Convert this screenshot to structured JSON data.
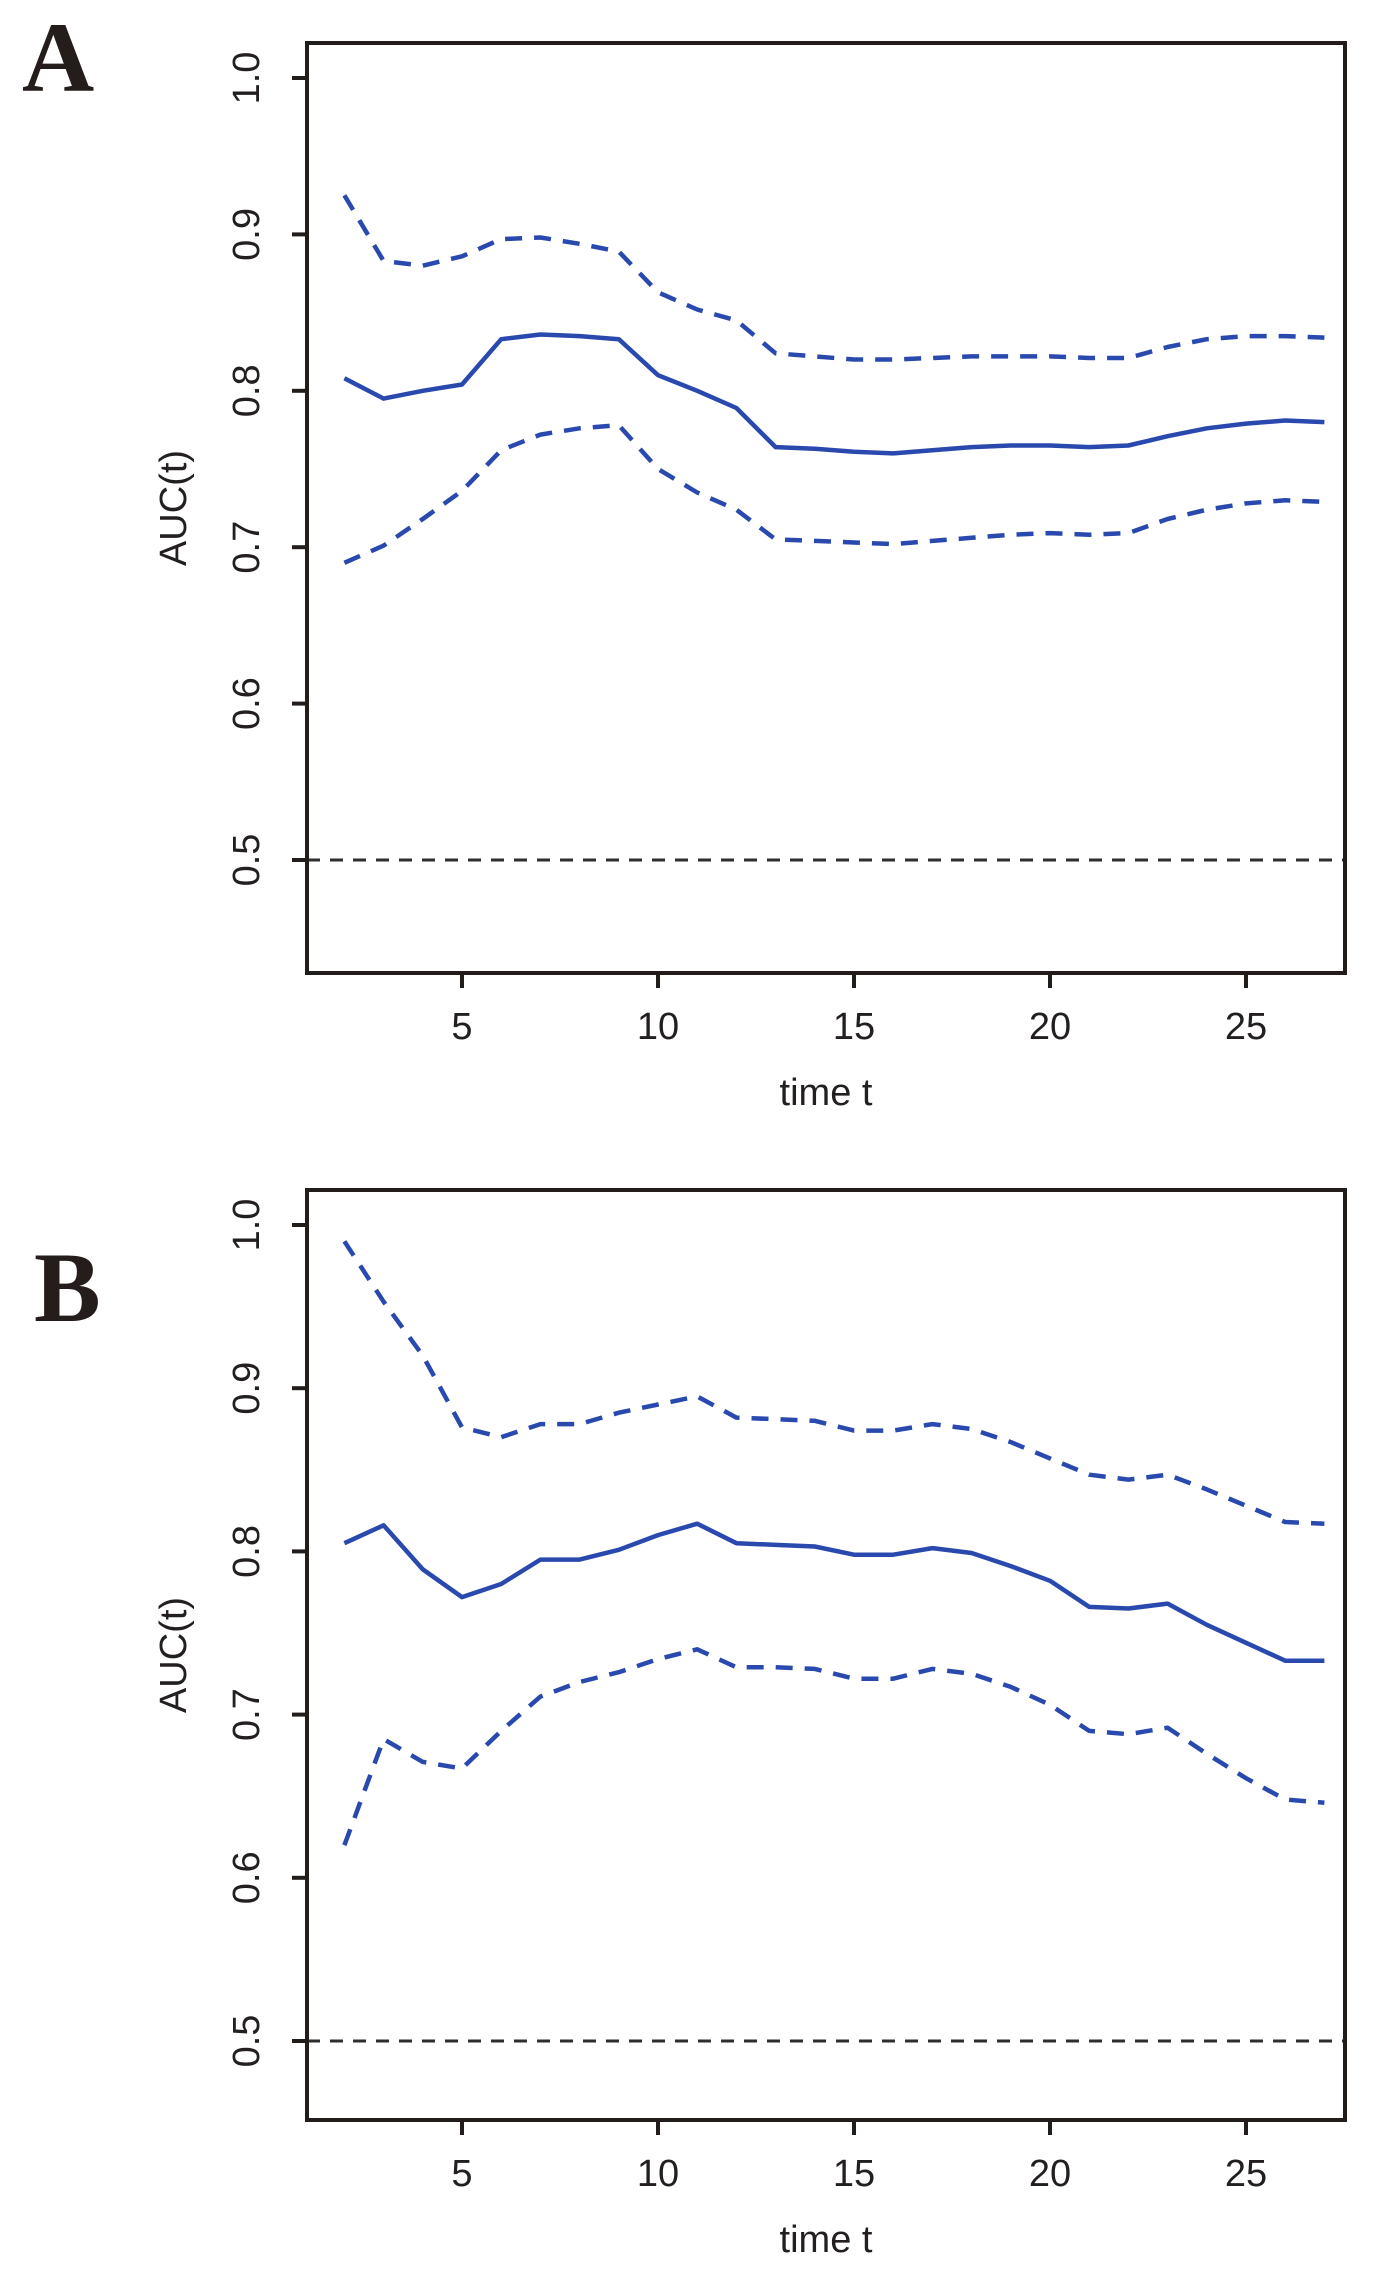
{
  "figure": {
    "background": "#ffffff",
    "accent_blue": "#2a49ae",
    "frame_color": "#221c1a",
    "reference_color": "#2e2e2e",
    "panels": [
      {
        "label": "A",
        "x_axis": {
          "title": "time t",
          "ticks": [
            "5",
            "10",
            "15",
            "20",
            "25"
          ]
        },
        "y_axis": {
          "title": "AUC(t)",
          "ticks": [
            "1.0",
            "0.9",
            "0.8",
            "0.7",
            "0.6",
            "0.5"
          ]
        }
      },
      {
        "label": "B",
        "x_axis": {
          "title": "time t",
          "ticks": [
            "5",
            "10",
            "15",
            "20",
            "25"
          ]
        },
        "y_axis": {
          "title": "AUC(t)",
          "ticks": [
            "1.0",
            "0.9",
            "0.8",
            "0.7",
            "0.6",
            "0.5"
          ]
        }
      }
    ]
  },
  "chart_data": [
    {
      "type": "line",
      "title": "A",
      "xlabel": "time t",
      "ylabel": "AUC(t)",
      "x": [
        2,
        3,
        4,
        5,
        6,
        7,
        8,
        9,
        10,
        11,
        12,
        13,
        14,
        15,
        16,
        17,
        18,
        19,
        20,
        21,
        22,
        23,
        24,
        25,
        26,
        27
      ],
      "series": [
        {
          "name": "AUC(t) estimate",
          "style": "solid",
          "color": "#2a49ae",
          "values": [
            0.808,
            0.795,
            0.8,
            0.804,
            0.833,
            0.836,
            0.835,
            0.833,
            0.81,
            0.8,
            0.789,
            0.764,
            0.763,
            0.761,
            0.76,
            0.762,
            0.764,
            0.765,
            0.765,
            0.764,
            0.765,
            0.771,
            0.776,
            0.779,
            0.781,
            0.78
          ]
        },
        {
          "name": "upper confidence band",
          "style": "dashed",
          "color": "#2a49ae",
          "values": [
            0.925,
            0.883,
            0.88,
            0.886,
            0.897,
            0.898,
            0.894,
            0.889,
            0.863,
            0.852,
            0.845,
            0.824,
            0.822,
            0.82,
            0.82,
            0.821,
            0.822,
            0.822,
            0.822,
            0.821,
            0.821,
            0.828,
            0.833,
            0.835,
            0.835,
            0.834
          ]
        },
        {
          "name": "lower confidence band",
          "style": "dashed",
          "color": "#2a49ae",
          "values": [
            0.69,
            0.701,
            0.718,
            0.736,
            0.762,
            0.772,
            0.776,
            0.778,
            0.75,
            0.735,
            0.724,
            0.705,
            0.704,
            0.703,
            0.702,
            0.704,
            0.706,
            0.708,
            0.709,
            0.708,
            0.709,
            0.718,
            0.724,
            0.728,
            0.73,
            0.729
          ]
        }
      ],
      "reference_line": {
        "y": 0.5,
        "style": "dashed",
        "color": "#2e2e2e"
      },
      "xlim": [
        1,
        27.6
      ],
      "ylim": [
        0.43,
        1.02
      ],
      "xticks": [
        5,
        10,
        15,
        20,
        25
      ],
      "yticks": [
        1.0,
        0.9,
        0.8,
        0.7,
        0.6,
        0.5
      ],
      "grid": false,
      "legend_position": "none"
    },
    {
      "type": "line",
      "title": "B",
      "xlabel": "time t",
      "ylabel": "AUC(t)",
      "x": [
        2,
        3,
        4,
        5,
        6,
        7,
        8,
        9,
        10,
        11,
        12,
        13,
        14,
        15,
        16,
        17,
        18,
        19,
        20,
        21,
        22,
        23,
        24,
        25,
        26,
        27
      ],
      "series": [
        {
          "name": "AUC(t) estimate",
          "style": "solid",
          "color": "#2a49ae",
          "values": [
            0.805,
            0.816,
            0.789,
            0.772,
            0.78,
            0.795,
            0.795,
            0.801,
            0.81,
            0.817,
            0.805,
            0.804,
            0.803,
            0.798,
            0.798,
            0.802,
            0.799,
            0.791,
            0.782,
            0.766,
            0.765,
            0.768,
            0.755,
            0.744,
            0.733,
            0.733
          ]
        },
        {
          "name": "upper confidence band",
          "style": "dashed",
          "color": "#2a49ae",
          "values": [
            0.99,
            0.953,
            0.92,
            0.876,
            0.87,
            0.878,
            0.878,
            0.885,
            0.89,
            0.895,
            0.882,
            0.881,
            0.88,
            0.874,
            0.874,
            0.878,
            0.875,
            0.867,
            0.857,
            0.847,
            0.844,
            0.847,
            0.838,
            0.828,
            0.818,
            0.817
          ]
        },
        {
          "name": "lower confidence band",
          "style": "dashed",
          "color": "#2a49ae",
          "values": [
            0.62,
            0.685,
            0.671,
            0.667,
            0.69,
            0.711,
            0.72,
            0.726,
            0.734,
            0.74,
            0.729,
            0.729,
            0.728,
            0.722,
            0.722,
            0.728,
            0.725,
            0.717,
            0.706,
            0.69,
            0.688,
            0.692,
            0.676,
            0.661,
            0.648,
            0.646
          ]
        }
      ],
      "reference_line": {
        "y": 0.5,
        "style": "dashed",
        "color": "#2e2e2e"
      },
      "xlim": [
        1,
        27.6
      ],
      "ylim": [
        0.43,
        1.02
      ],
      "xticks": [
        5,
        10,
        15,
        20,
        25
      ],
      "yticks": [
        1.0,
        0.9,
        0.8,
        0.7,
        0.6,
        0.5
      ],
      "grid": false,
      "legend_position": "none"
    }
  ]
}
